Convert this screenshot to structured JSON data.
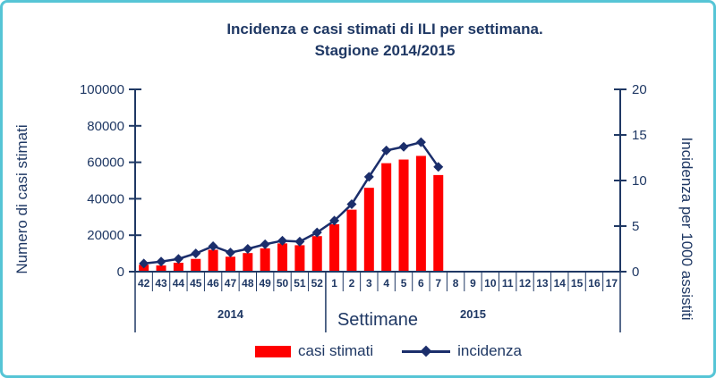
{
  "title": {
    "line1": "Incidenza e casi stimati di ILI per settimana.",
    "line2": "Stagione 2014/2015"
  },
  "axes": {
    "left_title": "Numero di casi stimati",
    "right_title": "Incidenza per 1000 assistiti",
    "x_title": "Settimane",
    "left_ticks": [
      0,
      20000,
      40000,
      60000,
      80000,
      100000
    ],
    "right_ticks": [
      0,
      5,
      10,
      15,
      20
    ],
    "year_groups": [
      {
        "label": "2014",
        "from_index": 0,
        "to_index": 10
      },
      {
        "label": "2015",
        "from_index": 11,
        "to_index": 27
      }
    ]
  },
  "legend": [
    {
      "label": "casi stimati",
      "marker": "bar",
      "color": "#ff0000"
    },
    {
      "label": "incidenza",
      "marker": "line-diamond",
      "color": "#1b2e6b"
    }
  ],
  "colors": {
    "navy_text": "#1f3864",
    "line_navy": "#1b2e6b",
    "bar_red": "#ff0000",
    "frame_border": "#56c5d6"
  },
  "chart_data": {
    "type": "bar",
    "title": "Incidenza e casi stimati di ILI per settimana. Stagione 2014/2015",
    "categories": [
      "42",
      "43",
      "44",
      "45",
      "46",
      "47",
      "48",
      "49",
      "50",
      "51",
      "52",
      "1",
      "2",
      "3",
      "4",
      "5",
      "6",
      "7",
      "8",
      "9",
      "10",
      "11",
      "12",
      "13",
      "14",
      "15",
      "16",
      "17"
    ],
    "xlabel": "Settimane",
    "ylabel_left": "Numero di casi stimati",
    "ylabel_right": "Incidenza per 1000 assistiti",
    "ylim_left": [
      0,
      100000
    ],
    "ylim_right": [
      0,
      20
    ],
    "grid": false,
    "legend_position": "bottom",
    "series": [
      {
        "name": "casi stimati",
        "type": "bar",
        "axis": "left",
        "color": "#ff0000",
        "values": [
          3800,
          3400,
          4900,
          7000,
          12000,
          8200,
          10200,
          12800,
          15500,
          14500,
          19500,
          26000,
          34000,
          46000,
          59500,
          61500,
          63500,
          53000,
          null,
          null,
          null,
          null,
          null,
          null,
          null,
          null,
          null,
          null
        ]
      },
      {
        "name": "incidenza",
        "type": "line",
        "axis": "right",
        "color": "#1b2e6b",
        "marker": "diamond",
        "values": [
          0.9,
          1.1,
          1.4,
          2.0,
          2.8,
          2.1,
          2.5,
          3.0,
          3.4,
          3.3,
          4.3,
          5.6,
          7.4,
          10.4,
          13.3,
          13.7,
          14.2,
          11.5,
          null,
          null,
          null,
          null,
          null,
          null,
          null,
          null,
          null,
          null
        ]
      }
    ]
  }
}
